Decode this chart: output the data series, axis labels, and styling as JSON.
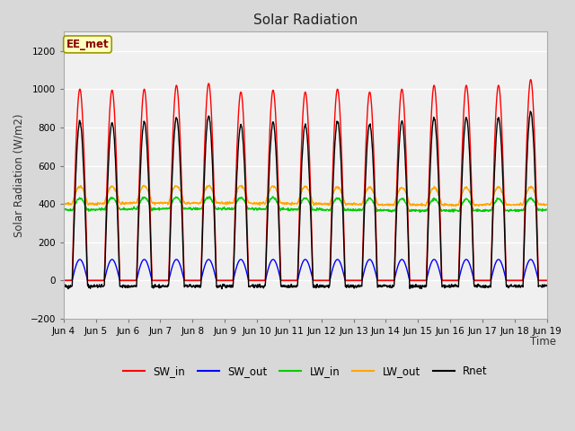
{
  "title": "Solar Radiation",
  "ylabel": "Solar Radiation (W/m2)",
  "xlabel": "Time",
  "ylim": [
    -200,
    1300
  ],
  "yticks": [
    -200,
    0,
    200,
    400,
    600,
    800,
    1000,
    1200
  ],
  "n_days": 15,
  "points_per_day": 96,
  "annotation_text": "EE_met",
  "annotation_box_color": "#FFFFC0",
  "annotation_text_color": "#8B0000",
  "annotation_border_color": "#999900",
  "fig_bg_color": "#D8D8D8",
  "plot_bg_color": "#E8E8E8",
  "plot_inner_bg": "#F0F0F0",
  "sw_in_color": "#FF0000",
  "sw_out_color": "#0000FF",
  "lw_in_color": "#00CC00",
  "lw_out_color": "#FFA500",
  "rnet_color": "#000000",
  "line_width": 1.0,
  "grid_color": "#FFFFFF",
  "grid_lw": 1.0,
  "tick_labels": [
    "Jun 4",
    "Jun 5",
    "Jun 6",
    "Jun 7",
    "Jun 8",
    "Jun 9",
    "Jun 10",
    "Jun 11",
    "Jun 12",
    "Jun 13",
    "Jun 14",
    "Jun 15",
    "Jun 16",
    "Jun 17",
    "Jun 18",
    "Jun 19"
  ]
}
